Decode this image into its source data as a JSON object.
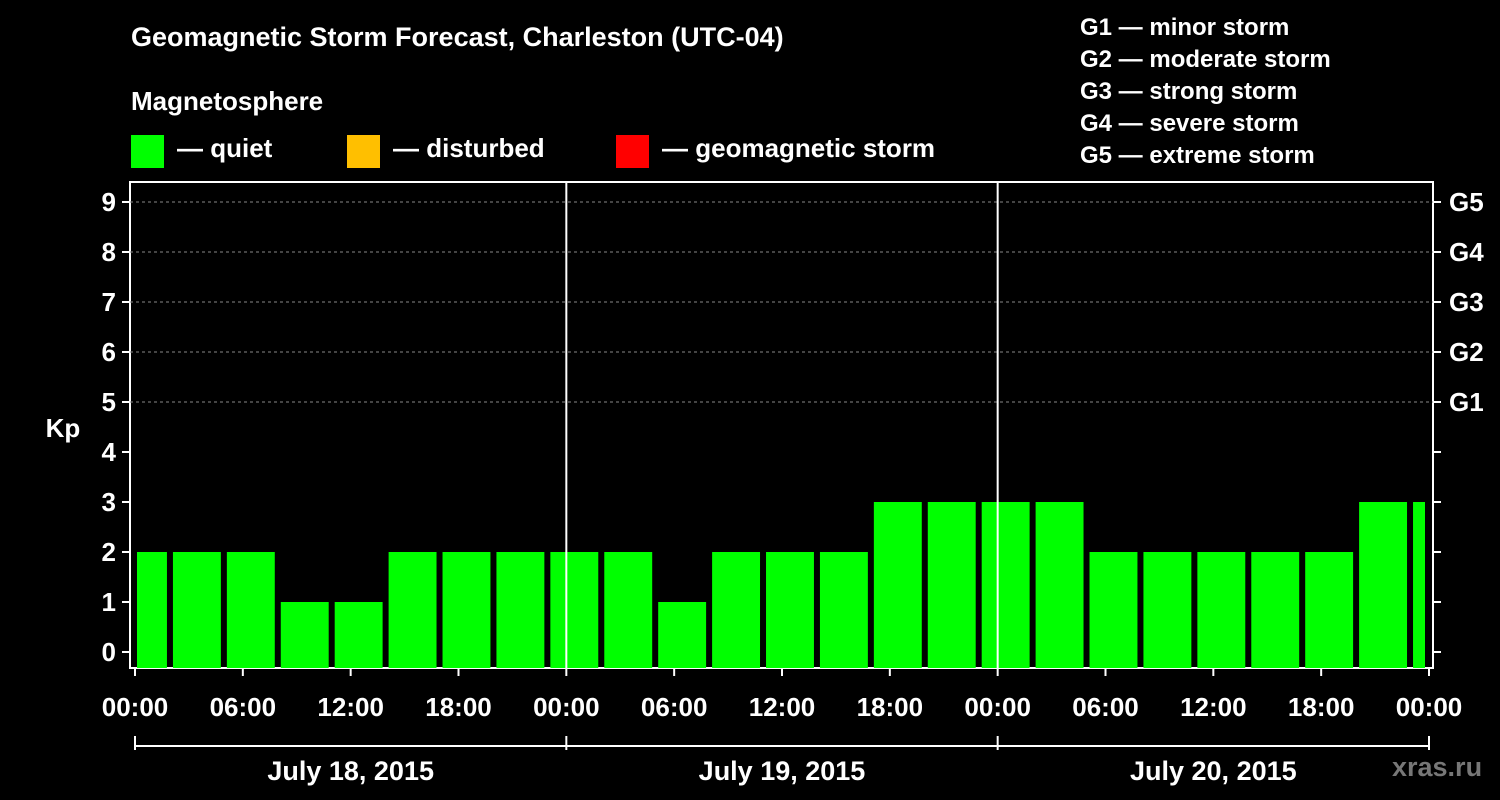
{
  "title": "Geomagnetic Storm Forecast, Charleston (UTC-04)",
  "magnetosphere_heading": "Magnetosphere",
  "legend": [
    {
      "label": "— quiet",
      "color": "#00ff00"
    },
    {
      "label": "— disturbed",
      "color": "#ffbf00"
    },
    {
      "label": "— geomagnetic storm",
      "color": "#ff0000"
    }
  ],
  "storm_scale": [
    "G1 — minor storm",
    "G2 — moderate storm",
    "G3 — strong storm",
    "G4 — severe storm",
    "G5 — extreme storm"
  ],
  "watermark": "xras.ru",
  "chart_data": {
    "type": "bar",
    "ylabel": "Kp",
    "ylim": [
      0,
      9
    ],
    "yticks": [
      0,
      1,
      2,
      3,
      4,
      5,
      6,
      7,
      8,
      9
    ],
    "right_ticks": [
      {
        "kp": 5,
        "label": "G1"
      },
      {
        "kp": 6,
        "label": "G2"
      },
      {
        "kp": 7,
        "label": "G3"
      },
      {
        "kp": 8,
        "label": "G4"
      },
      {
        "kp": 9,
        "label": "G5"
      }
    ],
    "grid": "horizontal dashed at Kp 5-9",
    "time_ticks": [
      "00:00",
      "06:00",
      "12:00",
      "18:00",
      "00:00",
      "06:00",
      "12:00",
      "18:00",
      "00:00",
      "06:00",
      "12:00",
      "18:00",
      "00:00"
    ],
    "days": [
      "July 18, 2015",
      "July 19, 2015",
      "July 20, 2015"
    ],
    "series": [
      {
        "values": [
          {
            "start": "July 18, 2015 00:00",
            "end": "July 18, 2015 02:00",
            "kp": 2
          },
          {
            "start": "July 18, 2015 02:00",
            "end": "July 18, 2015 05:00",
            "kp": 2
          },
          {
            "start": "July 18, 2015 05:00",
            "end": "July 18, 2015 08:00",
            "kp": 2
          },
          {
            "start": "July 18, 2015 08:00",
            "end": "July 18, 2015 11:00",
            "kp": 1
          },
          {
            "start": "July 18, 2015 11:00",
            "end": "July 18, 2015 14:00",
            "kp": 1
          },
          {
            "start": "July 18, 2015 14:00",
            "end": "July 18, 2015 17:00",
            "kp": 2
          },
          {
            "start": "July 18, 2015 17:00",
            "end": "July 18, 2015 20:00",
            "kp": 2
          },
          {
            "start": "July 18, 2015 20:00",
            "end": "July 18, 2015 23:00",
            "kp": 2
          },
          {
            "start": "July 18, 2015 23:00",
            "end": "July 19, 2015 02:00",
            "kp": 2
          },
          {
            "start": "July 19, 2015 02:00",
            "end": "July 19, 2015 05:00",
            "kp": 2
          },
          {
            "start": "July 19, 2015 05:00",
            "end": "July 19, 2015 08:00",
            "kp": 1
          },
          {
            "start": "July 19, 2015 08:00",
            "end": "July 19, 2015 11:00",
            "kp": 2
          },
          {
            "start": "July 19, 2015 11:00",
            "end": "July 19, 2015 14:00",
            "kp": 2
          },
          {
            "start": "July 19, 2015 14:00",
            "end": "July 19, 2015 17:00",
            "kp": 2
          },
          {
            "start": "July 19, 2015 17:00",
            "end": "July 19, 2015 20:00",
            "kp": 3
          },
          {
            "start": "July 19, 2015 20:00",
            "end": "July 19, 2015 23:00",
            "kp": 3
          },
          {
            "start": "July 19, 2015 23:00",
            "end": "July 20, 2015 02:00",
            "kp": 3
          },
          {
            "start": "July 20, 2015 02:00",
            "end": "July 20, 2015 05:00",
            "kp": 3
          },
          {
            "start": "July 20, 2015 05:00",
            "end": "July 20, 2015 08:00",
            "kp": 2
          },
          {
            "start": "July 20, 2015 08:00",
            "end": "July 20, 2015 11:00",
            "kp": 2
          },
          {
            "start": "July 20, 2015 11:00",
            "end": "July 20, 2015 14:00",
            "kp": 2
          },
          {
            "start": "July 20, 2015 14:00",
            "end": "July 20, 2015 17:00",
            "kp": 2
          },
          {
            "start": "July 20, 2015 17:00",
            "end": "July 20, 2015 20:00",
            "kp": 2
          },
          {
            "start": "July 20, 2015 20:00",
            "end": "July 20, 2015 23:00",
            "kp": 3
          },
          {
            "start": "July 20, 2015 23:00",
            "end": "July 21, 2015 00:00",
            "kp": 3
          }
        ]
      }
    ]
  }
}
